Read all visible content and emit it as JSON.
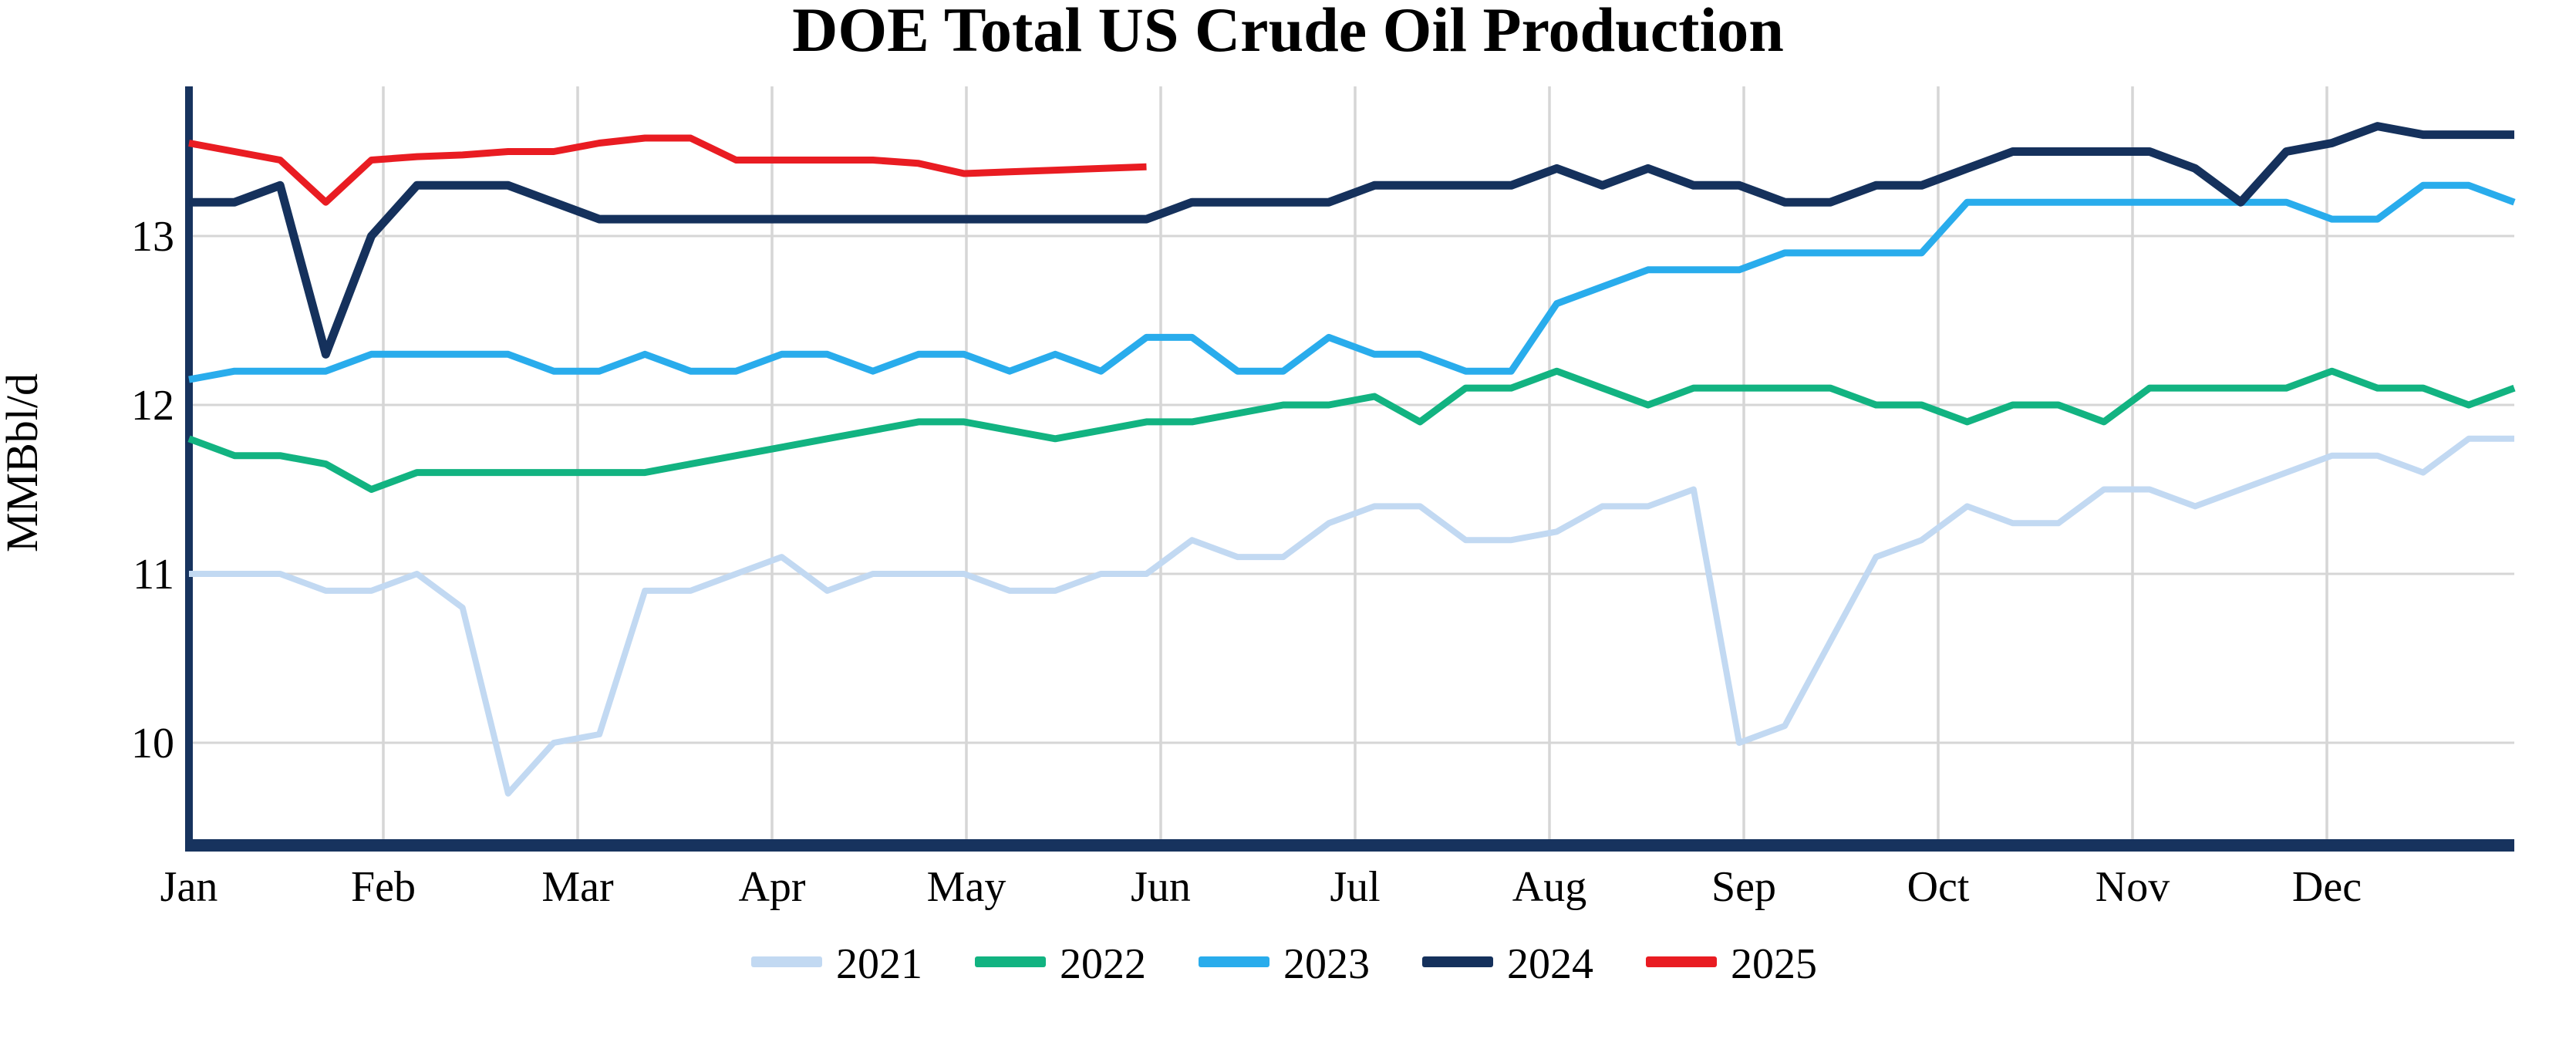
{
  "title": "DOE Total US Crude Oil Production",
  "y_axis": {
    "label": "MMBbl/d",
    "ticks": [
      13,
      12,
      11,
      10
    ]
  },
  "x_axis": {
    "tick_labels": [
      "Jan",
      "Feb",
      "Mar",
      "Apr",
      "May",
      "Jun",
      "Jul",
      "Aug",
      "Sep",
      "Oct",
      "Nov",
      "Dec"
    ]
  },
  "legend": {
    "entries": [
      "2021",
      "2022",
      "2023",
      "2024",
      "2025"
    ],
    "position": "bottom"
  },
  "colors": {
    "grid": "#D6D6D6",
    "spine": "#17335E",
    "series_2021": "#C2D9F2",
    "series_2022": "#12B381",
    "series_2023": "#29ACEC",
    "series_2024": "#15315C",
    "series_2025": "#E91C22"
  },
  "chart_data": {
    "type": "line",
    "title": "DOE Total US Crude Oil Production",
    "xlabel": "",
    "ylabel": "MMBbl/d",
    "x_unit": "week of year (weekly data, Jan–Dec)",
    "x_tick_labels": [
      "Jan",
      "Feb",
      "Mar",
      "Apr",
      "May",
      "Jun",
      "Jul",
      "Aug",
      "Sep",
      "Oct",
      "Nov",
      "Dec"
    ],
    "yticks": [
      10,
      11,
      12,
      13
    ],
    "ylim": [
      9.4,
      13.9
    ],
    "grid": true,
    "legend_position": "bottom",
    "series": [
      {
        "name": "2021",
        "color": "#C2D9F2",
        "stroke_width": 8,
        "values": [
          11.0,
          11.0,
          11.0,
          10.9,
          10.9,
          11.0,
          10.8,
          9.7,
          10.0,
          10.05,
          10.9,
          10.9,
          11.0,
          11.1,
          10.9,
          11.0,
          11.0,
          11.0,
          10.9,
          10.9,
          11.0,
          11.0,
          11.2,
          11.1,
          11.1,
          11.3,
          11.4,
          11.4,
          11.2,
          11.2,
          11.25,
          11.4,
          11.4,
          11.5,
          10.0,
          10.1,
          10.6,
          11.1,
          11.2,
          11.4,
          11.3,
          11.3,
          11.5,
          11.5,
          11.4,
          11.5,
          11.6,
          11.7,
          11.7,
          11.6,
          11.8,
          11.8
        ]
      },
      {
        "name": "2022",
        "color": "#12B381",
        "stroke_width": 9,
        "values": [
          11.8,
          11.7,
          11.7,
          11.65,
          11.5,
          11.6,
          11.6,
          11.6,
          11.6,
          11.6,
          11.6,
          11.65,
          11.7,
          11.75,
          11.8,
          11.85,
          11.9,
          11.9,
          11.85,
          11.8,
          11.85,
          11.9,
          11.9,
          11.95,
          12.0,
          12.0,
          12.05,
          11.9,
          12.1,
          12.1,
          12.2,
          12.1,
          12.0,
          12.1,
          12.1,
          12.1,
          12.1,
          12.0,
          12.0,
          11.9,
          12.0,
          12.0,
          11.9,
          12.1,
          12.1,
          12.1,
          12.1,
          12.2,
          12.1,
          12.1,
          12.0,
          12.1
        ]
      },
      {
        "name": "2023",
        "color": "#29ACEC",
        "stroke_width": 9,
        "values": [
          12.15,
          12.2,
          12.2,
          12.2,
          12.3,
          12.3,
          12.3,
          12.3,
          12.2,
          12.2,
          12.3,
          12.2,
          12.2,
          12.3,
          12.3,
          12.2,
          12.3,
          12.3,
          12.2,
          12.3,
          12.2,
          12.4,
          12.4,
          12.2,
          12.2,
          12.4,
          12.3,
          12.3,
          12.2,
          12.2,
          12.6,
          12.7,
          12.8,
          12.8,
          12.8,
          12.9,
          12.9,
          12.9,
          12.9,
          13.2,
          13.2,
          13.2,
          13.2,
          13.2,
          13.2,
          13.2,
          13.2,
          13.1,
          13.1,
          13.3,
          13.3,
          13.2
        ]
      },
      {
        "name": "2024",
        "color": "#15315C",
        "stroke_width": 11,
        "values": [
          13.2,
          13.2,
          13.3,
          12.3,
          13.0,
          13.3,
          13.3,
          13.3,
          13.2,
          13.1,
          13.1,
          13.1,
          13.1,
          13.1,
          13.1,
          13.1,
          13.1,
          13.1,
          13.1,
          13.1,
          13.1,
          13.1,
          13.2,
          13.2,
          13.2,
          13.2,
          13.3,
          13.3,
          13.3,
          13.3,
          13.4,
          13.3,
          13.4,
          13.3,
          13.3,
          13.2,
          13.2,
          13.3,
          13.3,
          13.4,
          13.5,
          13.5,
          13.5,
          13.5,
          13.4,
          13.2,
          13.5,
          13.55,
          13.65,
          13.6,
          13.6,
          13.6
        ]
      },
      {
        "name": "2025",
        "color": "#E91C22",
        "stroke_width": 9,
        "values": [
          13.55,
          13.5,
          13.45,
          13.2,
          13.45,
          13.47,
          13.48,
          13.5,
          13.5,
          13.55,
          13.58,
          13.58,
          13.45,
          13.45,
          13.45,
          13.45,
          13.43,
          13.37,
          13.38,
          13.39,
          13.4,
          13.41
        ]
      }
    ]
  }
}
